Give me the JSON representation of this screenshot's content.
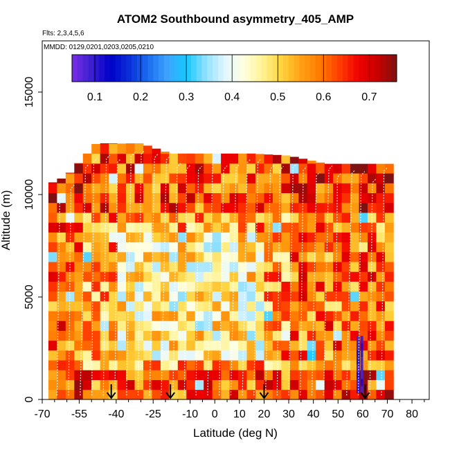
{
  "chart_data": {
    "type": "heatmap",
    "title": "ATOM2 Southbound asymmetry_405_AMP",
    "flights_note": "Flts: 2,3,4,5,6",
    "dates_note": "MMDD: 0129,0201,0203,0205,0210",
    "xlabel": "Latitude (deg N)",
    "ylabel": "Altitude (m)",
    "xlim": [
      -70,
      87
    ],
    "ylim": [
      0,
      17500
    ],
    "x_ticks": [
      -70,
      -55,
      -40,
      -25,
      -10,
      0,
      10,
      20,
      30,
      40,
      50,
      60,
      70,
      80
    ],
    "x_minor_ticks": [
      -65,
      -60,
      -50,
      -45,
      -35,
      -30,
      -20,
      -15,
      -5,
      5,
      15,
      25,
      35,
      45,
      55,
      65,
      75,
      85
    ],
    "y_ticks": [
      0,
      5000,
      10000,
      15000
    ],
    "colorbar": {
      "range": [
        0.05,
        0.76
      ],
      "ticks": [
        0.1,
        0.2,
        0.3,
        0.4,
        0.5,
        0.6,
        0.7
      ],
      "colors": [
        "#7a2ee6",
        "#3a1fd0",
        "#0000c8",
        "#0a2fd8",
        "#1c6ef0",
        "#3da4ff",
        "#16c8ff",
        "#8fe0ff",
        "#e2f6ff",
        "#ffffe0",
        "#fff290",
        "#ffd23c",
        "#ffa014",
        "#ff7a00",
        "#ff3e00",
        "#f00000",
        "#c80000",
        "#7d1212"
      ]
    },
    "arrow_latitudes": [
      -42,
      -18,
      20,
      61
    ],
    "curtain_extent": {
      "lat_range": [
        -67.5,
        71.5
      ],
      "alt_max_profile": [
        [
          -67.5,
          10500
        ],
        [
          -60,
          10900
        ],
        [
          -48,
          12500
        ],
        [
          -30,
          12500
        ],
        [
          -18,
          12000
        ],
        [
          0,
          12000
        ],
        [
          15,
          12000
        ],
        [
          30,
          11900
        ],
        [
          45,
          11500
        ],
        [
          55,
          11500
        ],
        [
          71.5,
          11500
        ]
      ]
    },
    "field_summary": "asymmetry parameter (0.05-0.76) by latitude and altitude; mostly 0.45-0.7, lower values (0.3-0.45) in the mid troposphere near the tropics, two dark blue low-value columns near 58-60 N below 3000 m"
  }
}
